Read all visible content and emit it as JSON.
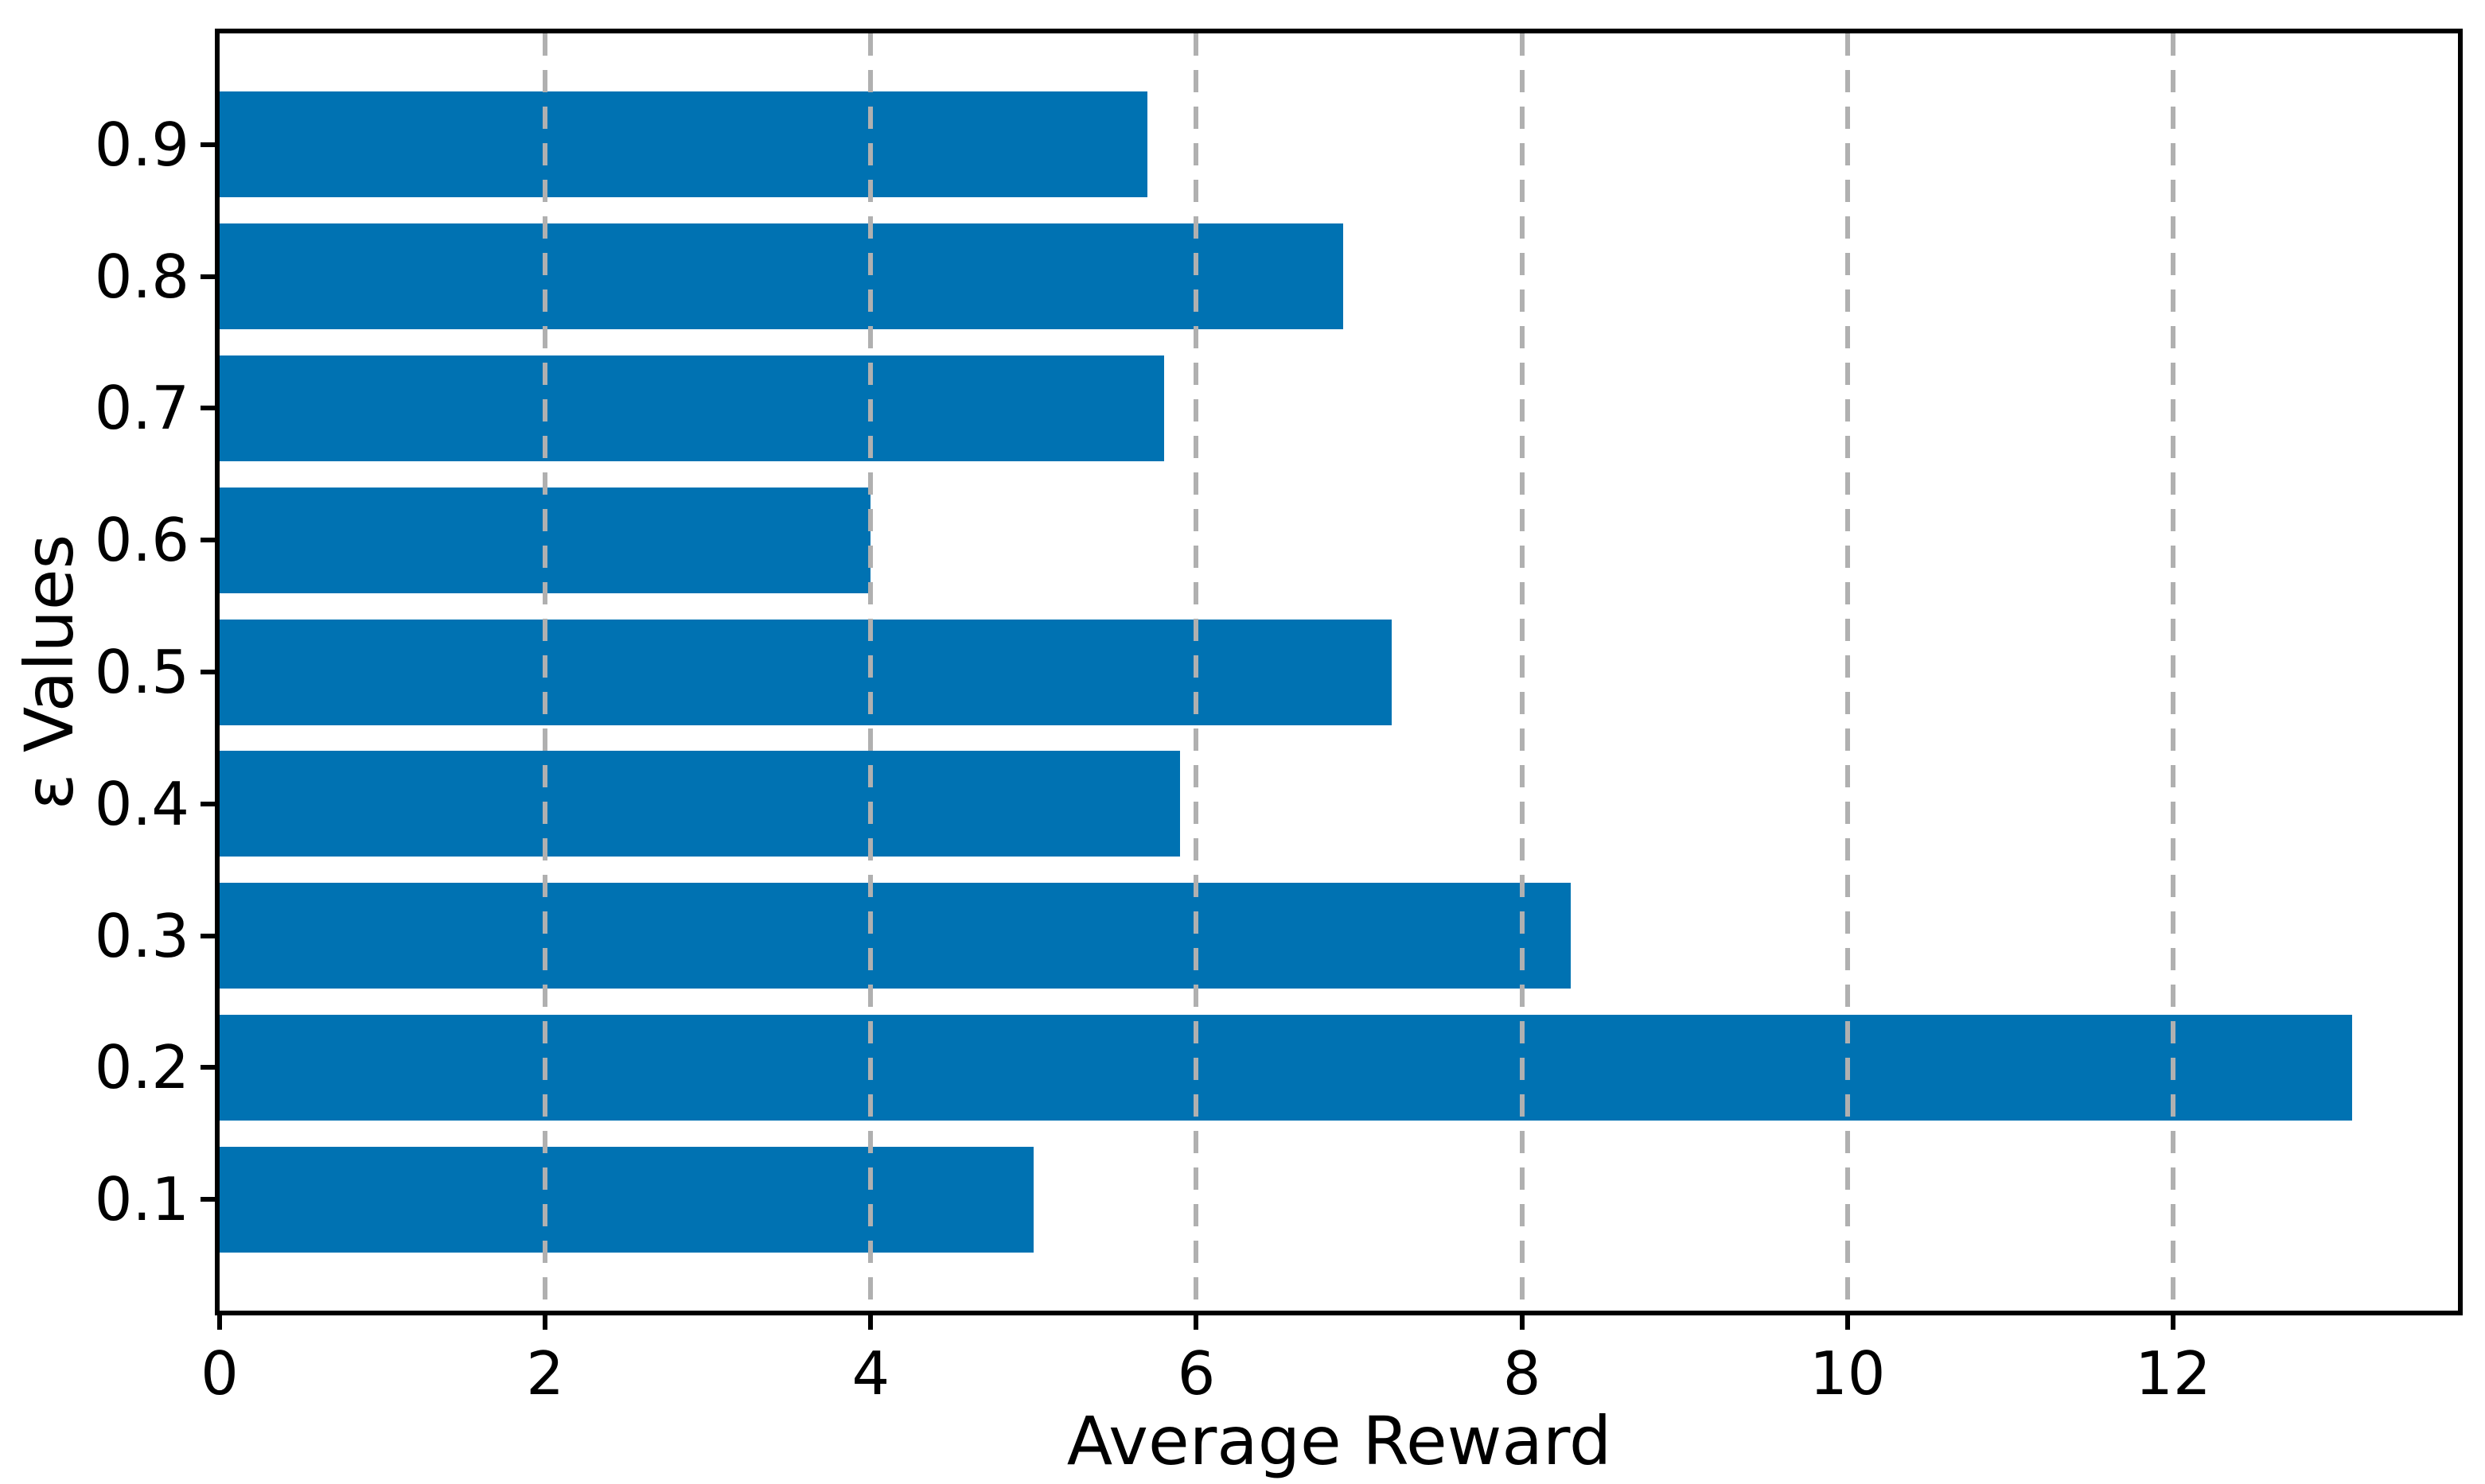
{
  "figure": {
    "background": "#ffffff"
  },
  "chart_data": {
    "type": "bar",
    "orientation": "horizontal",
    "title": "",
    "xlabel": "Average Reward",
    "ylabel": "ε Values",
    "categories": [
      "0.1",
      "0.2",
      "0.3",
      "0.4",
      "0.5",
      "0.6",
      "0.7",
      "0.8",
      "0.9"
    ],
    "values": [
      5.0,
      13.1,
      8.3,
      5.9,
      7.2,
      4.0,
      5.8,
      6.9,
      5.7
    ],
    "categories_note": "listed bottom-to-top as on the y-axis",
    "xticks": [
      0,
      2,
      4,
      6,
      8,
      10,
      12
    ],
    "xlim": [
      0,
      13.75
    ],
    "grid": "vertical dashed gridlines at x ticks, drawn above bars",
    "legend": "none",
    "bar_color": "#0072b2",
    "grid_color": "#b0b0b0",
    "axis_color": "#000000",
    "text_color": "#000000"
  }
}
